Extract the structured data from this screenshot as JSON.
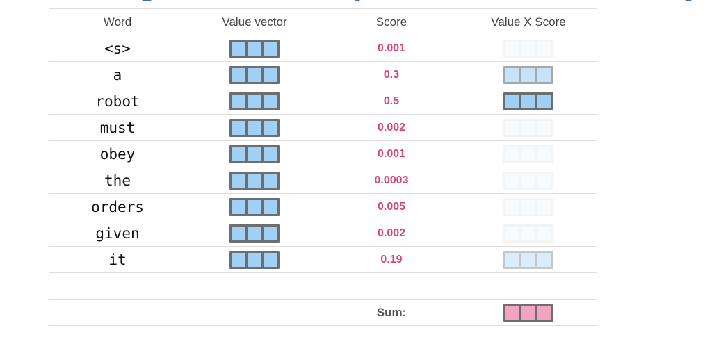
{
  "headers": {
    "word": "Word",
    "value_vector": "Value vector",
    "score": "Score",
    "value_x_score": "Value X Score"
  },
  "rows": [
    {
      "word": "<s>",
      "score": "0.001",
      "weight": 0.001
    },
    {
      "word": "a",
      "score": "0.3",
      "weight": 0.3
    },
    {
      "word": "robot",
      "score": "0.5",
      "weight": 0.5
    },
    {
      "word": "must",
      "score": "0.002",
      "weight": 0.002
    },
    {
      "word": "obey",
      "score": "0.001",
      "weight": 0.001
    },
    {
      "word": "the",
      "score": "0.0003",
      "weight": 0.0003
    },
    {
      "word": "orders",
      "score": "0.005",
      "weight": 0.005
    },
    {
      "word": "given",
      "score": "0.002",
      "weight": 0.002
    },
    {
      "word": "it",
      "score": "0.19",
      "weight": 0.19
    }
  ],
  "sum_label": "Sum:",
  "colors": {
    "value_cell": "#9fd0f6",
    "value_frame": "#6e6e6e",
    "sum_cell": "#f0a4bf",
    "score_text": "#d9447a"
  }
}
